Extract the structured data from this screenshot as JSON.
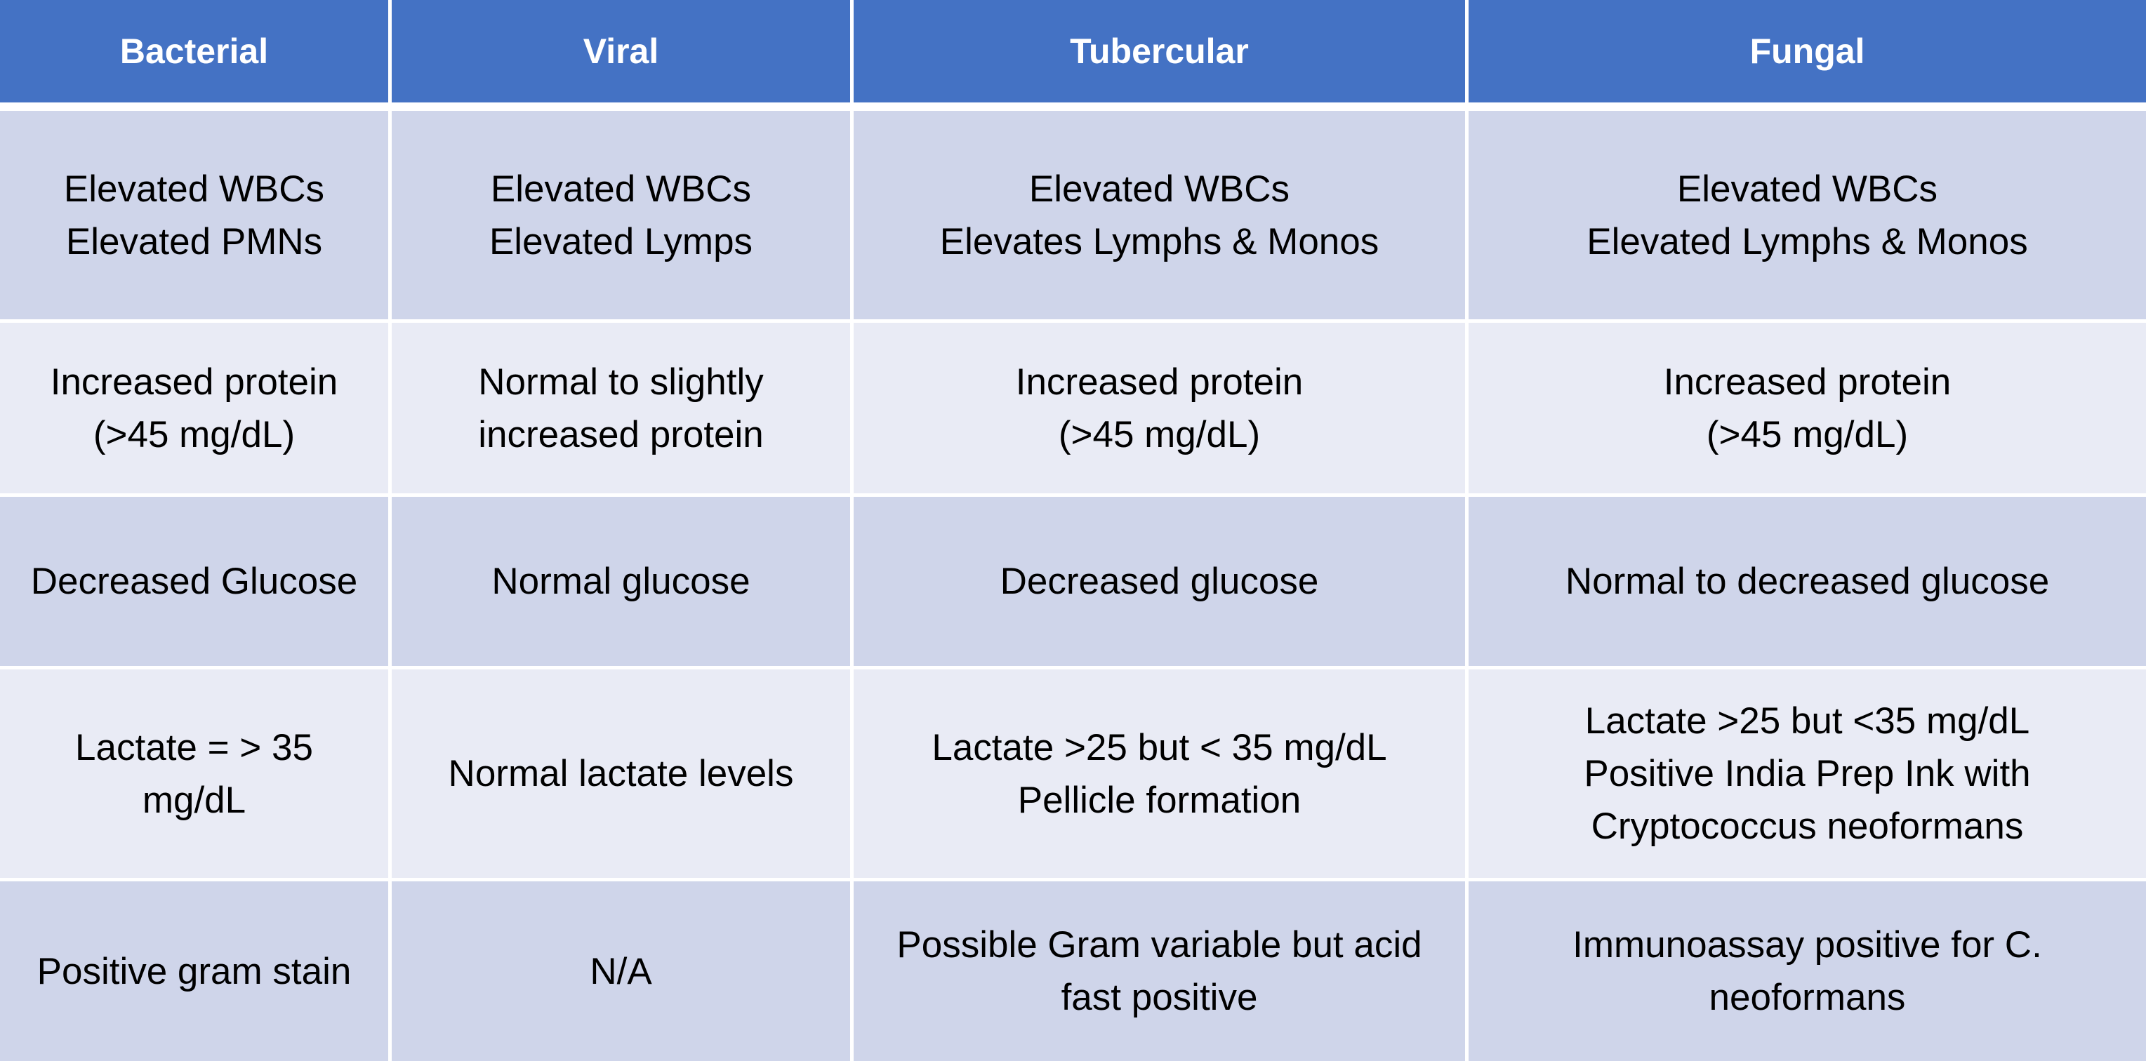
{
  "table": {
    "headers": [
      "Bacterial",
      "Viral",
      "Tubercular",
      "Fungal"
    ],
    "rows": [
      [
        "Elevated WBCs\nElevated PMNs",
        "Elevated WBCs\nElevated Lymps",
        "Elevated WBCs\nElevates Lymphs & Monos",
        "Elevated WBCs\nElevated Lymphs & Monos"
      ],
      [
        "Increased protein\n(>45 mg/dL)",
        "Normal to slightly\nincreased protein",
        "Increased protein\n(>45 mg/dL)",
        "Increased protein\n(>45 mg/dL)"
      ],
      [
        "Decreased Glucose",
        "Normal glucose",
        "Decreased glucose",
        "Normal to decreased glucose"
      ],
      [
        "Lactate = > 35\nmg/dL",
        "Normal lactate levels",
        "Lactate >25 but < 35 mg/dL\nPellicle formation",
        "Lactate >25 but <35 mg/dL\nPositive India Prep Ink with\nCryptococcus neoformans"
      ],
      [
        "Positive gram stain",
        "N/A",
        "Possible Gram variable but acid\nfast positive",
        "Immunoassay positive for C.\nneoformans"
      ]
    ],
    "colors": {
      "header_bg": "#4472c4",
      "header_text": "#ffffff",
      "row_dark": "#cfd5ea",
      "row_light": "#e9ebf5"
    }
  }
}
